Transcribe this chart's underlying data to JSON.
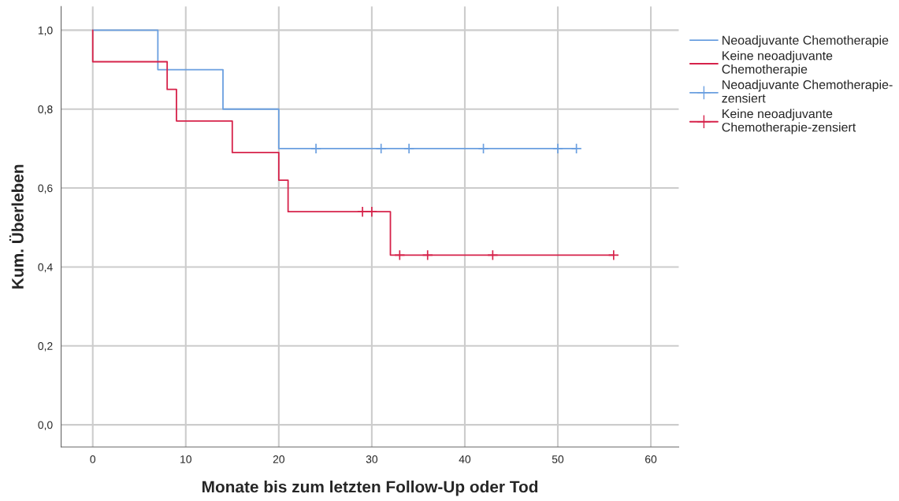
{
  "chart_data": {
    "type": "step",
    "xlabel": "Monate bis zum letzten Follow-Up oder Tod",
    "ylabel": "Kum. Überleben",
    "series": [
      {
        "name": "Neoadjuvante Chemotherapie",
        "color": "#6a9fe0",
        "x": [
          0,
          7,
          14,
          20,
          52
        ],
        "values": [
          1.0,
          0.9,
          0.8,
          0.7,
          0.7
        ]
      },
      {
        "name": "Keine neoadjuvante\nChemotherapie",
        "color": "#d6224a",
        "x": [
          0,
          0,
          8,
          9,
          15,
          20,
          21,
          32,
          56
        ],
        "values": [
          1.0,
          0.92,
          0.85,
          0.77,
          0.69,
          0.62,
          0.54,
          0.43,
          0.43
        ]
      },
      {
        "name": "Neoadjuvante Chemotherapie-\nzensiert",
        "type": "scatter",
        "marker": "cross",
        "color": "#6a9fe0",
        "x": [
          24,
          31,
          34,
          42,
          50,
          52
        ],
        "values": [
          0.7,
          0.7,
          0.7,
          0.7,
          0.7,
          0.7
        ]
      },
      {
        "name": "Keine neoadjuvante\nChemotherapie-zensiert",
        "type": "scatter",
        "marker": "cross",
        "color": "#d6224a",
        "x": [
          29,
          30,
          33,
          36,
          43,
          56
        ],
        "values": [
          0.54,
          0.54,
          0.43,
          0.43,
          0.43,
          0.43
        ]
      }
    ],
    "xlim": [
      -3.4,
      63
    ],
    "xticks": [
      0,
      10,
      20,
      30,
      40,
      50,
      60
    ],
    "ylim": [
      -0.056,
      1.06
    ],
    "yticks": [
      {
        "value": 0,
        "label": "0,0"
      },
      {
        "value": 0.2,
        "label": "0,2"
      },
      {
        "value": 0.4,
        "label": "0,4"
      },
      {
        "value": 0.6,
        "label": "0,6"
      },
      {
        "value": 0.8,
        "label": "0,8"
      },
      {
        "value": 1.0,
        "label": "1,0"
      }
    ],
    "grid": true,
    "legend": "right"
  }
}
